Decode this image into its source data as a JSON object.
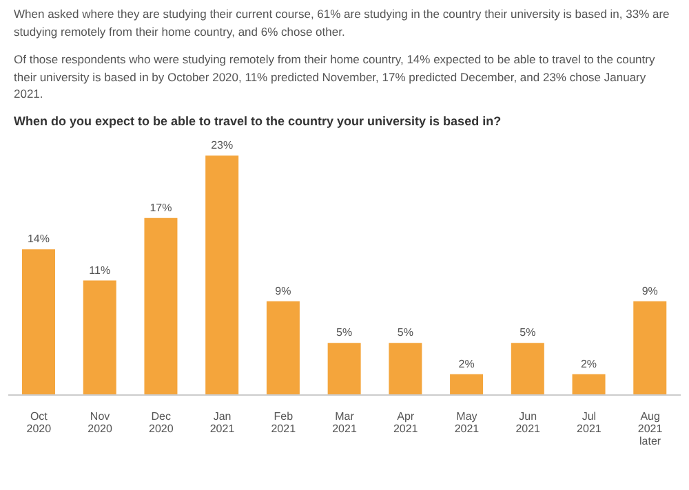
{
  "chart_data": {
    "type": "bar",
    "title": "When do you expect to be able to travel to the country your university is based in?",
    "annotations": [
      "When asked where they are studying their current course, 61% are studying in the country their university is based in, 33% are studying remotely from their home country, and 6% chose other.",
      "Of those respondents who were studying remotely from their home country, 14% expected to be able to travel to the country their university is based in by October 2020, 11% predicted November, 17% predicted December, and 23% chose January 2021."
    ],
    "categories": [
      "Oct 2020",
      "Nov 2020",
      "Dec 2020",
      "Jan 2021",
      "Feb 2021",
      "Mar 2021",
      "Apr 2021",
      "May 2021",
      "Jun 2021",
      "Jul 2021",
      "Aug 2021 later"
    ],
    "values": [
      14,
      11,
      17,
      23,
      9,
      5,
      5,
      2,
      5,
      2,
      9
    ],
    "value_labels": [
      "14%",
      "11%",
      "17%",
      "23%",
      "9%",
      "5%",
      "5%",
      "2%",
      "5%",
      "2%",
      "9%"
    ],
    "color": "#f4a53c",
    "grid": false,
    "legend": false
  }
}
